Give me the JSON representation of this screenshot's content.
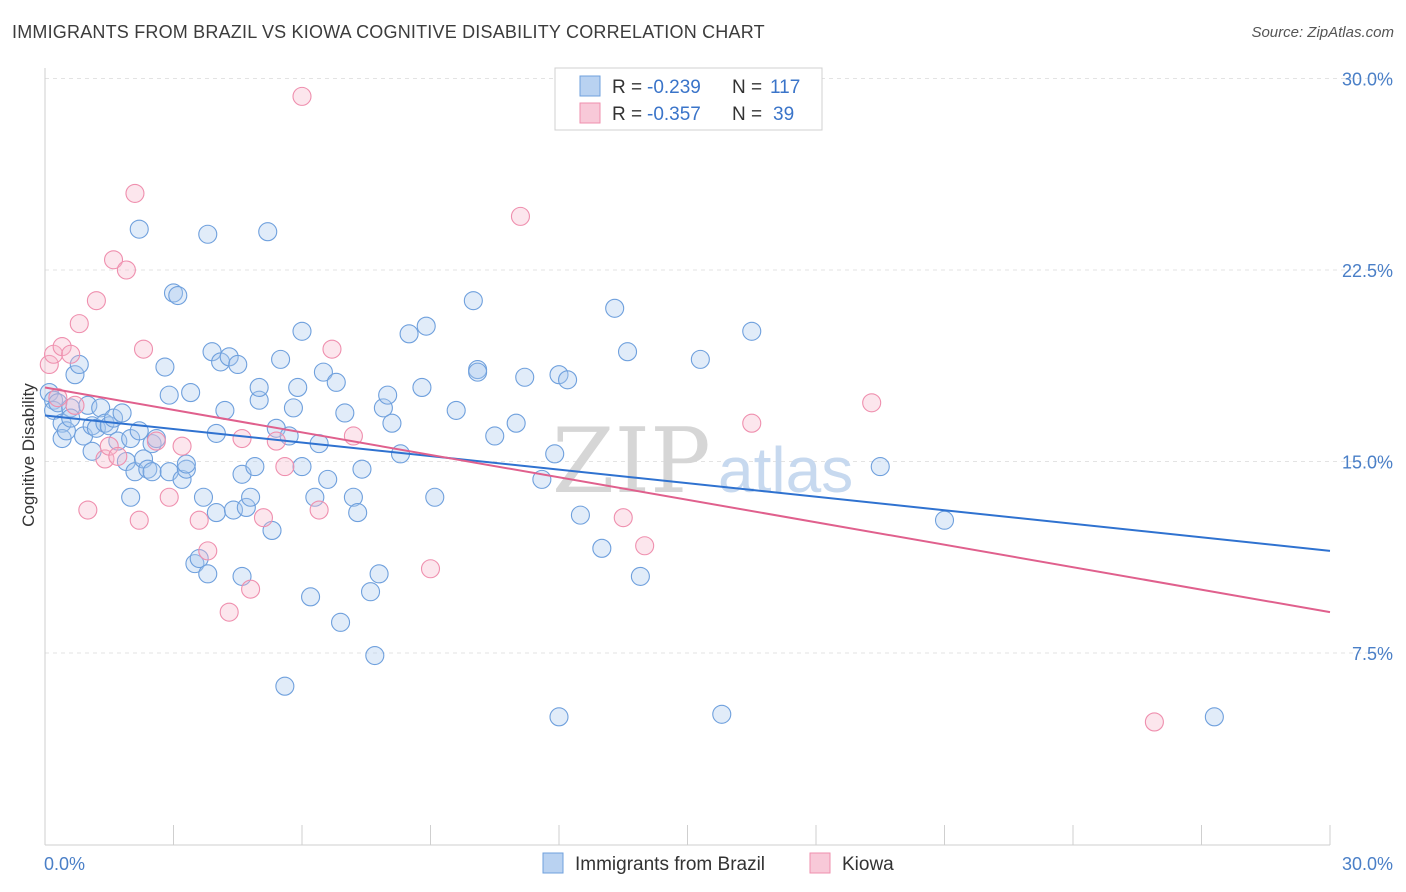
{
  "title": "IMMIGRANTS FROM BRAZIL VS KIOWA COGNITIVE DISABILITY CORRELATION CHART",
  "source": "Source: ZipAtlas.com",
  "watermark": {
    "zip": "ZIP",
    "atlas": "atlas"
  },
  "legend": {
    "rows": [
      {
        "r_label": "R = ",
        "r_value": "-0.239",
        "n_label": "N = ",
        "n_value": "117",
        "color": "#a9c8ee"
      },
      {
        "r_label": "R = ",
        "r_value": "-0.357",
        "n_label": "N = ",
        "n_value": "39",
        "color": "#f5b6ca"
      }
    ]
  },
  "chart_data": {
    "type": "scatter",
    "xlabel": "",
    "ylabel": "Cognitive Disability",
    "xlim": [
      0,
      30
    ],
    "ylim": [
      0,
      31
    ],
    "x_tick_labels": [
      "0.0%",
      "30.0%"
    ],
    "y_ticks": [
      7.5,
      15.0,
      22.5,
      30.0
    ],
    "y_tick_labels": [
      "7.5%",
      "15.0%",
      "22.5%",
      "30.0%"
    ],
    "grid": true,
    "legend_position": "bottom-center",
    "series": [
      {
        "name": "Immigrants from Brazil",
        "color": "#6fa0dd",
        "trend": {
          "x": [
            0,
            30
          ],
          "y": [
            16.8,
            11.5
          ],
          "color": "#2f72d0"
        },
        "points": [
          [
            0.1,
            17.7
          ],
          [
            0.2,
            17.4
          ],
          [
            0.2,
            17.0
          ],
          [
            0.3,
            17.3
          ],
          [
            0.4,
            16.5
          ],
          [
            0.4,
            15.9
          ],
          [
            0.5,
            16.2
          ],
          [
            0.6,
            17.1
          ],
          [
            0.6,
            16.7
          ],
          [
            0.7,
            18.4
          ],
          [
            0.8,
            18.8
          ],
          [
            0.9,
            16.0
          ],
          [
            1.0,
            17.2
          ],
          [
            1.1,
            15.4
          ],
          [
            1.1,
            16.4
          ],
          [
            1.2,
            16.3
          ],
          [
            1.3,
            17.1
          ],
          [
            1.4,
            16.5
          ],
          [
            1.5,
            16.4
          ],
          [
            1.6,
            16.7
          ],
          [
            1.7,
            15.8
          ],
          [
            1.8,
            16.9
          ],
          [
            1.9,
            15.0
          ],
          [
            2.0,
            15.9
          ],
          [
            2.0,
            13.6
          ],
          [
            2.1,
            14.6
          ],
          [
            2.2,
            16.2
          ],
          [
            2.3,
            15.1
          ],
          [
            2.4,
            14.7
          ],
          [
            2.5,
            15.7
          ],
          [
            2.5,
            14.6
          ],
          [
            2.6,
            15.9
          ],
          [
            2.8,
            18.7
          ],
          [
            2.9,
            17.6
          ],
          [
            2.9,
            14.6
          ],
          [
            3.0,
            21.6
          ],
          [
            3.1,
            21.5
          ],
          [
            3.2,
            14.3
          ],
          [
            3.3,
            14.7
          ],
          [
            3.3,
            14.9
          ],
          [
            3.4,
            17.7
          ],
          [
            3.5,
            11.0
          ],
          [
            3.6,
            11.2
          ],
          [
            3.7,
            13.6
          ],
          [
            3.8,
            10.6
          ],
          [
            3.9,
            19.3
          ],
          [
            4.0,
            16.1
          ],
          [
            4.0,
            13.0
          ],
          [
            4.1,
            18.9
          ],
          [
            4.2,
            17.0
          ],
          [
            4.3,
            19.1
          ],
          [
            4.4,
            13.1
          ],
          [
            4.5,
            18.8
          ],
          [
            4.6,
            10.5
          ],
          [
            4.6,
            14.5
          ],
          [
            4.7,
            13.2
          ],
          [
            4.8,
            13.6
          ],
          [
            4.9,
            14.8
          ],
          [
            5.0,
            17.4
          ],
          [
            5.0,
            17.9
          ],
          [
            5.2,
            24.0
          ],
          [
            5.3,
            12.3
          ],
          [
            5.4,
            16.3
          ],
          [
            5.5,
            19.0
          ],
          [
            5.6,
            6.2
          ],
          [
            5.7,
            16.0
          ],
          [
            5.8,
            17.1
          ],
          [
            5.9,
            17.9
          ],
          [
            6.0,
            20.1
          ],
          [
            6.0,
            14.8
          ],
          [
            6.2,
            9.7
          ],
          [
            6.3,
            13.6
          ],
          [
            6.4,
            15.7
          ],
          [
            6.5,
            18.5
          ],
          [
            6.6,
            14.3
          ],
          [
            6.8,
            18.1
          ],
          [
            6.9,
            8.7
          ],
          [
            7.0,
            16.9
          ],
          [
            7.2,
            13.6
          ],
          [
            7.3,
            13.0
          ],
          [
            7.4,
            14.7
          ],
          [
            7.6,
            9.9
          ],
          [
            7.7,
            7.4
          ],
          [
            7.8,
            10.6
          ],
          [
            7.9,
            17.1
          ],
          [
            8.0,
            17.6
          ],
          [
            8.1,
            16.5
          ],
          [
            8.3,
            15.3
          ],
          [
            8.5,
            20.0
          ],
          [
            8.8,
            17.9
          ],
          [
            8.9,
            20.3
          ],
          [
            9.1,
            13.6
          ],
          [
            9.6,
            17.0
          ],
          [
            10.0,
            21.3
          ],
          [
            10.1,
            18.6
          ],
          [
            10.1,
            18.5
          ],
          [
            10.5,
            16.0
          ],
          [
            11.0,
            16.5
          ],
          [
            11.2,
            18.3
          ],
          [
            11.6,
            14.3
          ],
          [
            11.9,
            15.3
          ],
          [
            12.0,
            5.0
          ],
          [
            12.0,
            18.4
          ],
          [
            12.2,
            18.2
          ],
          [
            12.5,
            12.9
          ],
          [
            13.0,
            11.6
          ],
          [
            13.3,
            21.0
          ],
          [
            13.6,
            19.3
          ],
          [
            13.9,
            10.5
          ],
          [
            15.3,
            19.0
          ],
          [
            15.8,
            5.1
          ],
          [
            16.5,
            20.1
          ],
          [
            19.5,
            14.8
          ],
          [
            21.0,
            12.7
          ],
          [
            27.3,
            5.0
          ],
          [
            3.8,
            23.9
          ],
          [
            2.2,
            24.1
          ]
        ]
      },
      {
        "name": "Kiowa",
        "color": "#ef8fae",
        "trend": {
          "x": [
            0,
            30
          ],
          "y": [
            17.9,
            9.1
          ],
          "color": "#e0608d"
        },
        "points": [
          [
            0.1,
            18.8
          ],
          [
            0.2,
            19.2
          ],
          [
            0.4,
            19.5
          ],
          [
            0.6,
            19.2
          ],
          [
            0.7,
            17.2
          ],
          [
            0.8,
            20.4
          ],
          [
            1.0,
            13.1
          ],
          [
            1.2,
            21.3
          ],
          [
            1.4,
            15.1
          ],
          [
            1.5,
            15.6
          ],
          [
            1.6,
            22.9
          ],
          [
            1.7,
            15.2
          ],
          [
            1.9,
            22.5
          ],
          [
            2.1,
            25.5
          ],
          [
            2.2,
            12.7
          ],
          [
            2.3,
            19.4
          ],
          [
            2.6,
            15.8
          ],
          [
            2.9,
            13.6
          ],
          [
            3.2,
            15.6
          ],
          [
            3.6,
            12.7
          ],
          [
            3.8,
            11.5
          ],
          [
            4.3,
            9.1
          ],
          [
            4.6,
            15.9
          ],
          [
            4.8,
            10.0
          ],
          [
            5.1,
            12.8
          ],
          [
            5.4,
            15.8
          ],
          [
            5.6,
            14.8
          ],
          [
            6.0,
            29.3
          ],
          [
            6.4,
            13.1
          ],
          [
            6.7,
            19.4
          ],
          [
            7.2,
            16.0
          ],
          [
            9.0,
            10.8
          ],
          [
            11.1,
            24.6
          ],
          [
            13.5,
            12.8
          ],
          [
            14.0,
            11.7
          ],
          [
            16.5,
            16.5
          ],
          [
            19.3,
            17.3
          ],
          [
            25.9,
            4.8
          ],
          [
            0.3,
            17.5
          ]
        ]
      }
    ]
  }
}
